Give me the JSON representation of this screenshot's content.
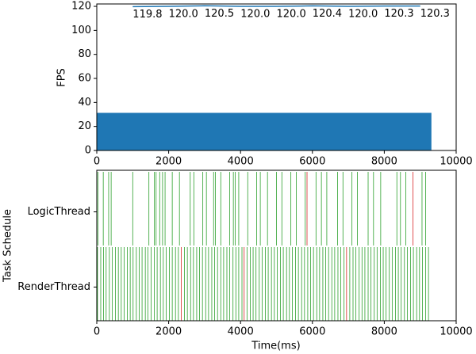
{
  "chart_data": [
    {
      "type": "line",
      "ylabel": "FPS",
      "xlim": [
        0,
        10000
      ],
      "xticks": [
        0,
        2000,
        4000,
        6000,
        8000,
        10000
      ],
      "ylim": [
        0,
        122
      ],
      "yticks": [
        0,
        20,
        40,
        60,
        80,
        100,
        120
      ],
      "series": [
        {
          "kind": "area",
          "color": "#1f77b4",
          "x": [
            0,
            9300
          ],
          "values": [
            31,
            31
          ]
        },
        {
          "kind": "line",
          "color": "#1f77b4",
          "x": [
            1000,
            2000,
            3000,
            4000,
            5000,
            6000,
            7000,
            8000,
            9000
          ],
          "values": [
            119.8,
            120,
            120.5,
            120,
            120,
            120.4,
            120,
            120.3,
            120.3
          ],
          "value_labels": [
            "119.8",
            "120.0",
            "120.5",
            "120.0",
            "120.0",
            "120.4",
            "120.0",
            "120.3",
            "120.3"
          ]
        }
      ]
    },
    {
      "type": "timeline",
      "xlabel": "Time(ms)",
      "ylabel": "Task Schedule",
      "xlim": [
        0,
        10000
      ],
      "xticks": [
        0,
        2000,
        4000,
        6000,
        8000,
        10000
      ],
      "rows": [
        {
          "label": "LogicThread",
          "groups": [
            {
              "color": "#2ca02c",
              "times": [
                30,
                180,
                330,
                400,
                1000,
                1450,
                1600,
                1650,
                1750,
                1830,
                1900,
                2100,
                2300,
                2600,
                2700,
                2950,
                3050,
                3250,
                3300,
                3450,
                3700,
                3800,
                3850,
                3950,
                4200,
                4450,
                4550,
                4750,
                5000,
                5150,
                5400,
                5550,
                5800,
                6100,
                6250,
                6400,
                6700,
                6850,
                7100,
                7250,
                7550,
                7700,
                7900,
                8350,
                8450,
                8600,
                9050,
                9150
              ]
            },
            {
              "color": "#d62728",
              "times": [
                5850,
                8800
              ]
            }
          ]
        },
        {
          "label": "RenderThread",
          "groups": [
            {
              "color": "#2ca02c",
              "times": [
                20,
                110,
                190,
                260,
                350,
                430,
                520,
                600,
                680,
                760,
                850,
                930,
                1010,
                1100,
                1180,
                1260,
                1350,
                1420,
                1510,
                1600,
                1680,
                1770,
                1850,
                1930,
                2020,
                2100,
                2190,
                2270,
                2440,
                2520,
                2610,
                2690,
                2780,
                2860,
                2940,
                3030,
                3110,
                3200,
                3280,
                3360,
                3450,
                3530,
                3620,
                3700,
                3790,
                3870,
                3950,
                4040,
                4180,
                4270,
                4350,
                4430,
                4520,
                4600,
                4690,
                4770,
                4860,
                4940,
                5020,
                5110,
                5190,
                5280,
                5360,
                5440,
                5530,
                5610,
                5700,
                5780,
                5870,
                5950,
                6030,
                6120,
                6200,
                6290,
                6370,
                6450,
                6540,
                6620,
                6710,
                6790,
                6880,
                7040,
                7130,
                7210,
                7300,
                7380,
                7460,
                7550,
                7630,
                7720,
                7800,
                7890,
                7970,
                8050,
                8140,
                8220,
                8310,
                8390,
                8470,
                8560,
                8640,
                8730,
                8810,
                8900,
                8980,
                9060,
                9150,
                9230
              ]
            },
            {
              "color": "#d62728",
              "times": [
                2350,
                4100,
                6950
              ]
            }
          ]
        }
      ]
    }
  ]
}
